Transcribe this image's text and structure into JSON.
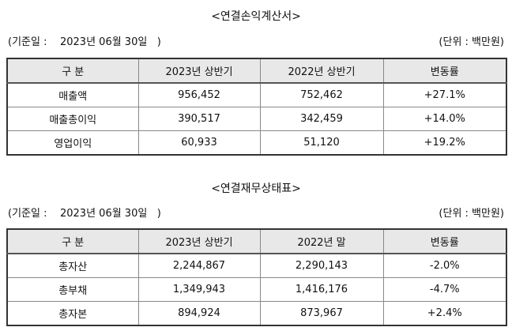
{
  "income": {
    "title": "<연결손익계산서>",
    "base_date": "(기준일 :    2023년 06월 30일   )",
    "unit": "(단위 : 백만원)",
    "headers": [
      "구 분",
      "2023년 상반기",
      "2022년 상반기",
      "변동률"
    ],
    "rows": [
      [
        "매출액",
        "956,452",
        "752,462",
        "+27.1%"
      ],
      [
        "매출총이익",
        "390,517",
        "342,459",
        "+14.0%"
      ],
      [
        "영업이익",
        "60,933",
        "51,120",
        "+19.2%"
      ]
    ]
  },
  "balance": {
    "title": "<연결재무상태표>",
    "base_date": "(기준일 :    2023년 06월 30일   )",
    "unit": "(단위 : 백만원)",
    "headers": [
      "구 분",
      "2023년 상반기",
      "2022년 말",
      "변동률"
    ],
    "rows": [
      [
        "총자산",
        "2,244,867",
        "2,290,143",
        "-2.0%"
      ],
      [
        "총부채",
        "1,349,943",
        "1,416,176",
        "-4.7%"
      ],
      [
        "총자본",
        "894,924",
        "873,967",
        "+2.4%"
      ]
    ]
  }
}
